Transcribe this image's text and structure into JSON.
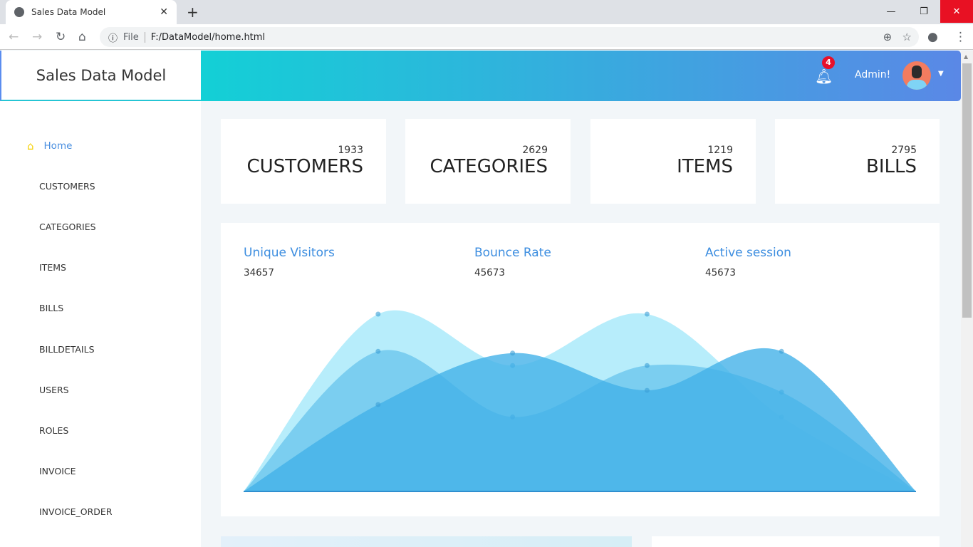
{
  "browser": {
    "tab_title": "Sales Data Model",
    "url_scheme": "File",
    "url": "F:/DataModel/home.html"
  },
  "header": {
    "brand": "Sales Data Model",
    "notifications": "4",
    "user": "Admin!"
  },
  "sidebar": {
    "items": [
      {
        "label": "Home",
        "icon": "home-icon"
      },
      {
        "label": "CUSTOMERS"
      },
      {
        "label": "CATEGORIES"
      },
      {
        "label": "ITEMS"
      },
      {
        "label": "BILLS"
      },
      {
        "label": "BILLDETAILS"
      },
      {
        "label": "USERS"
      },
      {
        "label": "ROLES"
      },
      {
        "label": "INVOICE"
      },
      {
        "label": "INVOICE_ORDER"
      }
    ]
  },
  "cards": [
    {
      "value": "1933",
      "label": "CUSTOMERS"
    },
    {
      "value": "2629",
      "label": "CATEGORIES"
    },
    {
      "value": "1219",
      "label": "ITEMS"
    },
    {
      "value": "2795",
      "label": "BILLS"
    }
  ],
  "stats": [
    {
      "title": "Unique Visitors",
      "value": "34657"
    },
    {
      "title": "Bounce Rate",
      "value": "45673"
    },
    {
      "title": "Active session",
      "value": "45673"
    }
  ],
  "chart_data": {
    "type": "area",
    "x": [
      0,
      1,
      2,
      3,
      4,
      5
    ],
    "ylim": [
      0,
      100
    ],
    "grid": false,
    "series": [
      {
        "values": [
          0,
          100,
          71,
          100,
          42,
          0
        ],
        "color": "#b3ecfb"
      },
      {
        "values": [
          0,
          79,
          42,
          71,
          56,
          0
        ],
        "color": "#6cc6ee"
      },
      {
        "values": [
          0,
          49,
          78,
          57,
          79,
          0
        ],
        "color": "#44b1e8"
      }
    ]
  }
}
